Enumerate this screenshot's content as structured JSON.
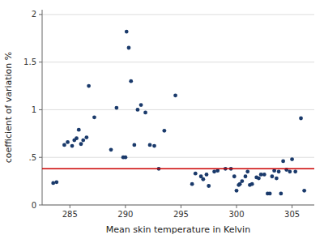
{
  "chart_data": {
    "type": "scatter",
    "x": [
      283.5,
      283.8,
      284.5,
      284.8,
      285.2,
      285.4,
      285.6,
      285.8,
      286.0,
      286.2,
      286.5,
      286.7,
      287.2,
      288.7,
      289.2,
      289.8,
      290.0,
      290.1,
      290.3,
      290.5,
      290.8,
      291.1,
      291.4,
      291.8,
      292.2,
      292.6,
      293.0,
      293.5,
      294.5,
      296.0,
      296.3,
      296.8,
      297.0,
      297.3,
      297.5,
      298.0,
      298.3,
      299.0,
      299.5,
      299.8,
      300.0,
      300.2,
      300.3,
      300.5,
      300.8,
      301.0,
      301.2,
      301.4,
      301.8,
      302.0,
      302.2,
      302.5,
      302.8,
      303.0,
      303.2,
      303.4,
      303.6,
      303.8,
      304.0,
      304.2,
      304.5,
      304.8,
      305.0,
      305.3,
      305.8,
      306.1
    ],
    "values": [
      0.23,
      0.24,
      0.63,
      0.66,
      0.62,
      0.68,
      0.7,
      0.79,
      0.64,
      0.68,
      0.71,
      1.25,
      0.92,
      0.58,
      1.02,
      0.5,
      0.5,
      1.82,
      1.65,
      1.3,
      0.63,
      1.0,
      1.05,
      0.97,
      0.63,
      0.62,
      0.38,
      0.78,
      1.15,
      0.22,
      0.33,
      0.3,
      0.27,
      0.32,
      0.2,
      0.35,
      0.36,
      0.38,
      0.38,
      0.3,
      0.15,
      0.21,
      0.22,
      0.25,
      0.3,
      0.35,
      0.21,
      0.22,
      0.29,
      0.28,
      0.32,
      0.32,
      0.12,
      0.12,
      0.3,
      0.36,
      0.28,
      0.35,
      0.12,
      0.46,
      0.37,
      0.35,
      0.48,
      0.35,
      0.91,
      0.15
    ],
    "color": "#1a3a6b",
    "reference_line": {
      "y": 0.38,
      "color": "#cc0000"
    },
    "xlim": [
      282.5,
      307.0
    ],
    "ylim": [
      0,
      2.05
    ],
    "xticks": [
      285,
      290,
      295,
      300,
      305
    ],
    "yticks": [
      0,
      {
        "value": 0.5,
        "label": ".5"
      },
      1,
      1.5,
      2
    ],
    "xlabel": "Mean skin temperature in Kelvin",
    "ylabel": "coefficient of variation %",
    "grid": true
  }
}
